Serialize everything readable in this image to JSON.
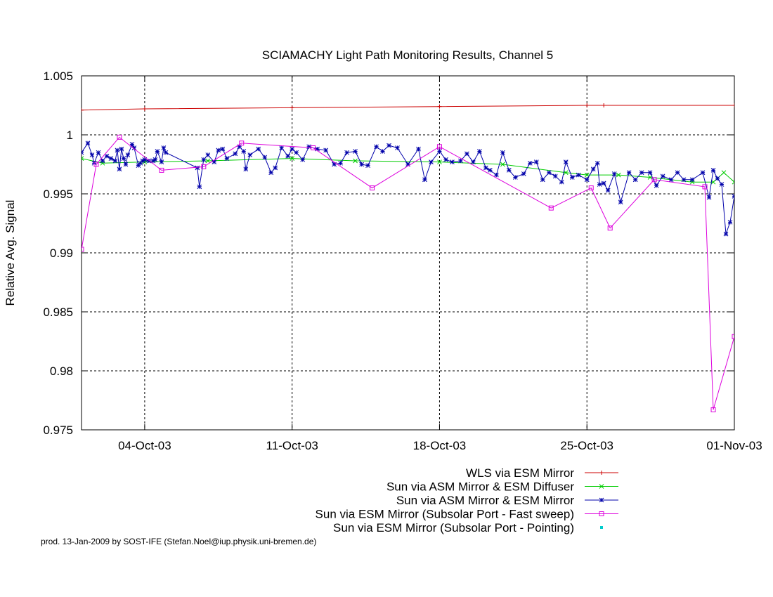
{
  "chart_data": {
    "type": "line",
    "title": "SCIAMACHY Light Path Monitoring Results, Channel 5",
    "ylabel": "Relative Avg. Signal",
    "xlabel": "",
    "footer": "prod. 13-Jan-2009 by SOST-IFE (Stefan.Noel@iup.physik.uni-bremen.de)",
    "xlim": [
      -3.0,
      28.0
    ],
    "x_unit": "days relative to 04-Oct-03",
    "ylim": [
      0.975,
      1.005
    ],
    "grid": true,
    "legend_position": "bottom-right below plot",
    "xticks": [
      {
        "x": 0,
        "label": "04-Oct-03"
      },
      {
        "x": 7,
        "label": "11-Oct-03"
      },
      {
        "x": 14,
        "label": "18-Oct-03"
      },
      {
        "x": 21,
        "label": "25-Oct-03"
      },
      {
        "x": 28,
        "label": "01-Nov-03"
      }
    ],
    "yticks": [
      {
        "y": 0.975,
        "label": "0.975"
      },
      {
        "y": 0.98,
        "label": "0.98"
      },
      {
        "y": 0.985,
        "label": "0.985"
      },
      {
        "y": 0.99,
        "label": "0.99"
      },
      {
        "y": 0.995,
        "label": "0.995"
      },
      {
        "y": 1.0,
        "label": "1"
      },
      {
        "y": 1.005,
        "label": "1.005"
      }
    ],
    "series": [
      {
        "name": "WLS via ESM Mirror",
        "color": "#cc0000",
        "marker": "plus",
        "x": [
          -3.0,
          0.0,
          7.0,
          14.0,
          21.0,
          21.8,
          28.0
        ],
        "y": [
          1.0021,
          1.0022,
          1.0023,
          1.0024,
          1.0025,
          1.0025,
          1.0025
        ]
      },
      {
        "name": "Sun via ASM Mirror & ESM Diffuser",
        "color": "#00cc00",
        "marker": "cross",
        "x": [
          -3.0,
          -2.0,
          0.0,
          3.0,
          7.0,
          10.0,
          14.0,
          17.0,
          20.0,
          21.0,
          22.5,
          24.0,
          26.0,
          27.0,
          27.5,
          28.0
        ],
        "y": [
          0.998,
          0.9976,
          0.9977,
          0.9978,
          0.998,
          0.9978,
          0.9977,
          0.9975,
          0.9968,
          0.9966,
          0.9966,
          0.9964,
          0.996,
          0.996,
          0.9968,
          0.996
        ]
      },
      {
        "name": "Sun via ASM Mirror & ESM Mirror",
        "color": "#0000aa",
        "marker": "star",
        "x": [
          -3.0,
          -2.7,
          -2.5,
          -2.4,
          -2.2,
          -2.0,
          -1.8,
          -1.6,
          -1.4,
          -1.3,
          -1.2,
          -1.1,
          -1.0,
          -0.9,
          -0.8,
          -0.6,
          -0.5,
          -0.3,
          -0.2,
          -0.1,
          0.0,
          0.2,
          0.4,
          0.5,
          0.6,
          0.8,
          0.9,
          1.0,
          2.5,
          2.6,
          2.8,
          3.0,
          3.3,
          3.5,
          3.7,
          3.9,
          4.3,
          4.5,
          4.7,
          4.8,
          5.0,
          5.4,
          5.7,
          6.0,
          6.2,
          6.5,
          6.8,
          7.0,
          7.2,
          7.5,
          7.8,
          8.2,
          8.6,
          9.0,
          9.3,
          9.6,
          10.0,
          10.3,
          10.6,
          11.0,
          11.3,
          11.6,
          12.0,
          12.5,
          13.0,
          13.3,
          13.6,
          14.0,
          14.3,
          14.6,
          15.0,
          15.3,
          15.6,
          15.9,
          16.2,
          16.4,
          16.7,
          17.0,
          17.3,
          17.6,
          18.0,
          18.3,
          18.6,
          18.9,
          19.2,
          19.5,
          19.8,
          20.0,
          20.3,
          20.6,
          21.0,
          21.3,
          21.5,
          21.6,
          21.8,
          22.0,
          22.3,
          22.6,
          23.0,
          23.3,
          23.6,
          24.0,
          24.3,
          24.6,
          25.0,
          25.3,
          25.6,
          26.0,
          26.5,
          26.8,
          27.0,
          27.2,
          27.4,
          27.6,
          27.8,
          28.0
        ],
        "y": [
          0.9985,
          0.9993,
          0.9983,
          0.9976,
          0.9985,
          0.9978,
          0.9982,
          0.998,
          0.9978,
          0.9987,
          0.9971,
          0.9988,
          0.998,
          0.9975,
          0.9983,
          0.9992,
          0.9989,
          0.9974,
          0.9976,
          0.9978,
          0.9979,
          0.9978,
          0.9978,
          0.9979,
          0.9986,
          0.9977,
          0.9989,
          0.9985,
          0.9972,
          0.9956,
          0.9979,
          0.9983,
          0.9977,
          0.9987,
          0.9988,
          0.998,
          0.9984,
          0.999,
          0.9986,
          0.9971,
          0.9983,
          0.9988,
          0.9981,
          0.9968,
          0.9972,
          0.9989,
          0.9982,
          0.9988,
          0.9985,
          0.9979,
          0.999,
          0.9988,
          0.9987,
          0.9975,
          0.9976,
          0.9985,
          0.9986,
          0.9975,
          0.9974,
          0.999,
          0.9986,
          0.9991,
          0.9989,
          0.9975,
          0.9988,
          0.9962,
          0.9977,
          0.9986,
          0.9979,
          0.9977,
          0.9978,
          0.9984,
          0.9977,
          0.9986,
          0.9972,
          0.997,
          0.9966,
          0.9985,
          0.997,
          0.9964,
          0.9967,
          0.9976,
          0.9977,
          0.9962,
          0.9968,
          0.9965,
          0.996,
          0.9977,
          0.9964,
          0.9966,
          0.9962,
          0.9971,
          0.9976,
          0.9958,
          0.9959,
          0.9953,
          0.9967,
          0.9943,
          0.9968,
          0.9962,
          0.9968,
          0.9968,
          0.9957,
          0.9965,
          0.9962,
          0.9968,
          0.9962,
          0.9962,
          0.9968,
          0.9947,
          0.997,
          0.9963,
          0.9958,
          0.9916,
          0.9926,
          0.9948
        ]
      },
      {
        "name": "Sun via ESM Mirror (Subsolar Port - Fast sweep)",
        "color": "#dd00dd",
        "marker": "square",
        "x": [
          -3.0,
          -2.3,
          -1.2,
          0.8,
          2.8,
          4.6,
          8.0,
          10.8,
          14.0,
          19.3,
          21.2,
          22.1,
          24.2,
          26.6,
          27.0,
          28.0
        ],
        "y": [
          0.9903,
          0.9975,
          0.9998,
          0.997,
          0.9973,
          0.9993,
          0.9989,
          0.9955,
          0.999,
          0.9938,
          0.9955,
          0.9921,
          0.9962,
          0.9956,
          0.9767,
          0.9829
        ]
      },
      {
        "name": "Sun via ESM Mirror (Subsolar Port - Pointing)",
        "color": "#00cccc",
        "marker": "dot",
        "x": [],
        "y": []
      }
    ]
  }
}
